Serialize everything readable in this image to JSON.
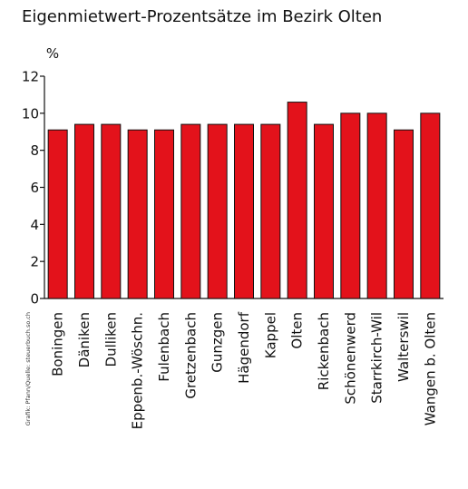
{
  "chart_data": {
    "type": "bar",
    "title": "Eigenmietwert-Prozentsätze im Bezirk Olten",
    "ylabel": "%",
    "xlabel": "",
    "ylim": [
      0,
      12
    ],
    "yticks": [
      0,
      2,
      4,
      6,
      8,
      10,
      12
    ],
    "grid": false,
    "bar_color": "#e3121b",
    "categories": [
      "Boningen",
      "Däniken",
      "Dulliken",
      "Eppenb.-Wöschn.",
      "Fulenbach",
      "Gretzenbach",
      "Gunzgen",
      "Hägendorf",
      "Kappel",
      "Olten",
      "Rickenbach",
      "Schönenwerd",
      "Starrkirch-Wil",
      "Walterswil",
      "Wangen b. Olten"
    ],
    "values": [
      9.1,
      9.4,
      9.4,
      9.1,
      9.1,
      9.4,
      9.4,
      9.4,
      9.4,
      10.6,
      9.4,
      10.0,
      10.0,
      9.1,
      10.0
    ]
  },
  "source_note": "Grafik: Pfann/Quelle: steuerbuch.so.ch"
}
